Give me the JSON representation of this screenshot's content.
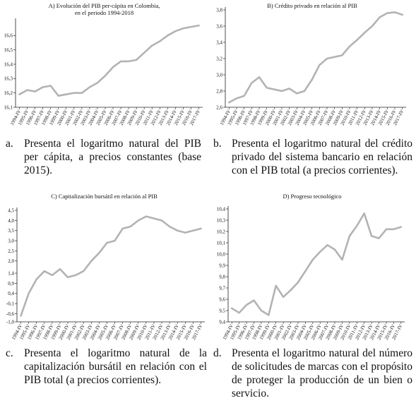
{
  "chart_data": [
    {
      "id": "A",
      "type": "line",
      "title": "A) Evolución del PIB per-cápita en Colombia,",
      "subtitle": "en el periodo 1994-2018",
      "ylim": [
        16.1,
        16.7
      ],
      "yticks": [
        "16,1",
        "16,2",
        "16,3",
        "16,4",
        "16,5",
        "16,6"
      ],
      "ytick_values": [
        16.1,
        16.2,
        16.3,
        16.4,
        16.5,
        16.6
      ],
      "categories": [
        "1994-IV",
        "1995-IV",
        "1996-IV",
        "1997-IV",
        "1998-IV",
        "1999-IV",
        "2000-IV",
        "2001-IV",
        "2002-IV",
        "2003-IV",
        "2004-IV",
        "2005-IV",
        "2006-IV",
        "2007-IV",
        "2008-IV",
        "2009-IV",
        "2010-IV",
        "2011-IV",
        "2012-IV",
        "2013-IV",
        "2014-IV",
        "2015-IV",
        "2016-IV",
        "2017-IV"
      ],
      "values": [
        16.19,
        16.22,
        16.21,
        16.24,
        16.25,
        16.18,
        16.19,
        16.2,
        16.2,
        16.24,
        16.27,
        16.32,
        16.38,
        16.42,
        16.42,
        16.43,
        16.48,
        16.53,
        16.56,
        16.6,
        16.63,
        16.65,
        16.66,
        16.67
      ],
      "grid": false
    },
    {
      "id": "B",
      "type": "line",
      "title": "B) Crédito privado en relación al PIB",
      "ylim": [
        2.6,
        3.8
      ],
      "yticks": [
        "2,6",
        "2,8",
        "3,0",
        "3,2",
        "3,4",
        "3,6",
        "3,8"
      ],
      "ytick_values": [
        2.6,
        2.8,
        3.0,
        3.2,
        3.4,
        3.6,
        3.8
      ],
      "categories": [
        "1994-IV",
        "1995-IV",
        "1996-IV",
        "1997-IV",
        "1998-IV",
        "1999-IV",
        "2000-IV",
        "2001-IV",
        "2002-IV",
        "2003-IV",
        "2004-IV",
        "2005-IV",
        "2006-IV",
        "2007-IV",
        "2008-IV",
        "2009-IV",
        "2010-IV",
        "2011-IV",
        "2012-IV",
        "2013-IV",
        "2014-IV",
        "2015-IV",
        "2016-IV",
        "2017-IV"
      ],
      "values": [
        2.66,
        2.71,
        2.74,
        2.9,
        2.97,
        2.84,
        2.82,
        2.8,
        2.83,
        2.77,
        2.8,
        2.94,
        3.12,
        3.2,
        3.22,
        3.24,
        3.35,
        3.43,
        3.52,
        3.6,
        3.71,
        3.76,
        3.77,
        3.74
      ],
      "grid": false
    },
    {
      "id": "C",
      "type": "line",
      "title": "C) Capitalización bursátil en relación al PIB",
      "ylim": [
        -1.0,
        4.5
      ],
      "yticks": [
        "-1,0",
        "-0,6",
        "-0,1",
        "0,4",
        "0,9",
        "1,4",
        "2,0",
        "2,5",
        "3,0",
        "3,5",
        "4,0",
        "4,5"
      ],
      "ytick_values": [
        -1.0,
        -0.6,
        -0.1,
        0.4,
        0.9,
        1.4,
        2.0,
        2.5,
        3.0,
        3.5,
        4.0,
        4.5
      ],
      "categories": [
        "1994-IV",
        "1995-IV",
        "1996-IV",
        "1997-IV",
        "1998-IV",
        "1999-IV",
        "2000-IV",
        "2001-IV",
        "2002-IV",
        "2003-IV",
        "2004-IV",
        "2005-IV",
        "2006-IV",
        "2007-IV",
        "2008-IV",
        "2009-IV",
        "2010-IV",
        "2011-IV",
        "2012-IV",
        "2013-IV",
        "2014-IV",
        "2015-IV",
        "2016-IV",
        "2017-IV"
      ],
      "values": [
        -0.7,
        0.4,
        1.1,
        1.5,
        1.3,
        1.6,
        1.2,
        1.3,
        1.5,
        2.0,
        2.4,
        2.9,
        3.0,
        3.6,
        3.7,
        4.0,
        4.2,
        4.1,
        4.0,
        3.7,
        3.5,
        3.4,
        3.5,
        3.6
      ],
      "grid": false
    },
    {
      "id": "D",
      "type": "line",
      "title": "D) Progreso tecnológico",
      "ylim": [
        9.4,
        10.4
      ],
      "yticks": [
        "9,4",
        "9,5",
        "9,6",
        "9,7",
        "9,8",
        "9,9",
        "10,0",
        "10,1",
        "10,2",
        "10,3",
        "10,4"
      ],
      "ytick_values": [
        9.4,
        9.5,
        9.6,
        9.7,
        9.8,
        9.9,
        10.0,
        10.1,
        10.2,
        10.3,
        10.4
      ],
      "categories": [
        "1994-IV",
        "1995-IV",
        "1996-IV",
        "1997-IV",
        "1998-IV",
        "1999-IV",
        "2000-IV",
        "2001-IV",
        "2002-IV",
        "2003-IV",
        "2004-IV",
        "2005-IV",
        "2006-IV",
        "2007-IV",
        "2008-IV",
        "2009-IV",
        "2010-IV",
        "2011-IV",
        "2012-IV",
        "2013-IV",
        "2014-IV",
        "2015-IV",
        "2016-IV",
        "2017-IV"
      ],
      "values": [
        9.52,
        9.48,
        9.55,
        9.59,
        9.5,
        9.46,
        9.72,
        9.62,
        9.68,
        9.75,
        9.85,
        9.95,
        10.02,
        10.08,
        10.04,
        9.95,
        10.16,
        10.25,
        10.36,
        10.16,
        10.14,
        10.22,
        10.22,
        10.24
      ],
      "grid": false
    }
  ],
  "captions": {
    "a": {
      "label": "a.",
      "text": "Presenta el logaritmo natural del PIB per cápita, a precios constantes (base 2015)."
    },
    "b": {
      "label": "b.",
      "text": "Presenta el logaritmo natural del crédito privado del sistema bancario en relación con el PIB total (a precios corrientes)."
    },
    "c": {
      "label": "c.",
      "text": "Presenta el logaritmo natural de la capitalización bursátil en relación con el PIB total (a precios corrientes)."
    },
    "d": {
      "label": "d.",
      "text": "Presenta el logaritmo natural del número de solicitudes de marcas con el propósito de proteger la producción de un bien o servicio."
    }
  },
  "colors": {
    "line": "#b3b3b3",
    "axis": "#222222"
  }
}
